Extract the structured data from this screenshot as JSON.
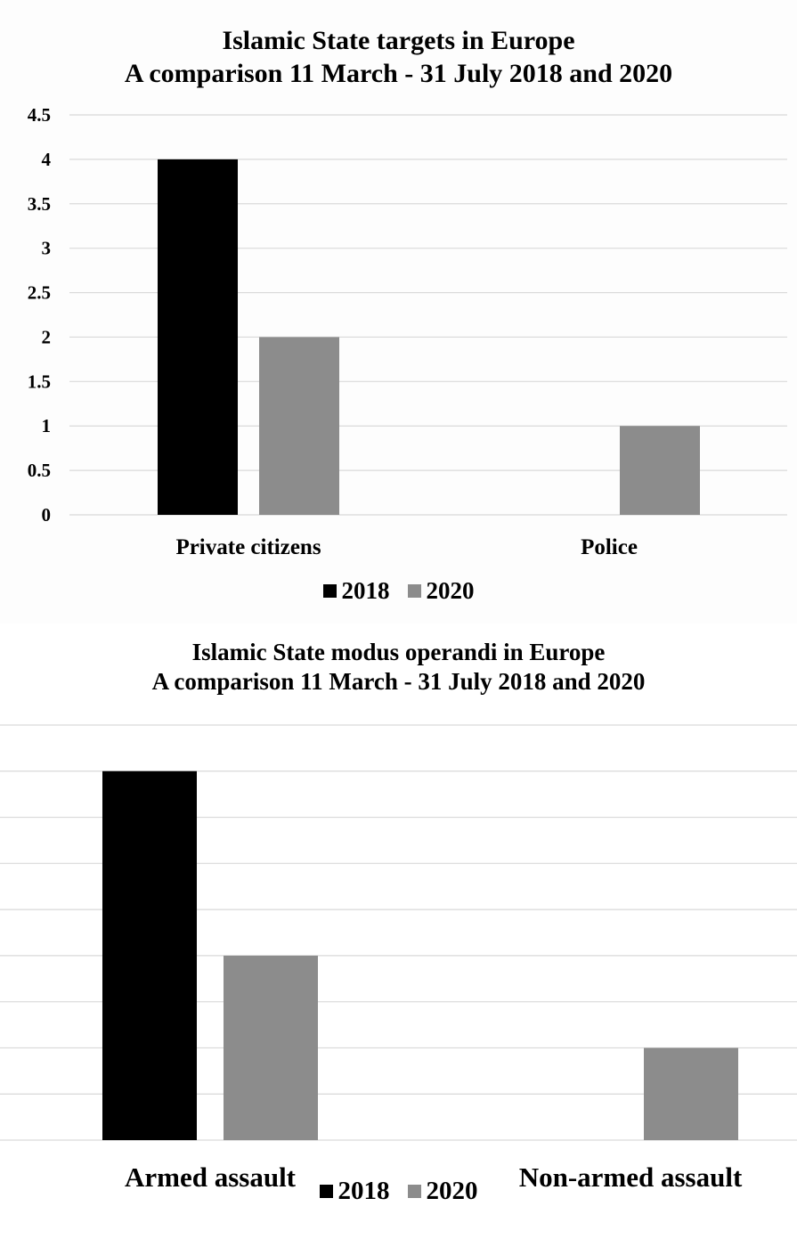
{
  "chart_data": [
    {
      "type": "bar",
      "title_lines": [
        "Islamic State targets in Europe",
        "A comparison 11 March - 31 July 2018 and 2020"
      ],
      "categories": [
        "Private citizens",
        "Police"
      ],
      "series": [
        {
          "name": "2018",
          "color": "#000000",
          "values": [
            4,
            0
          ]
        },
        {
          "name": "2020",
          "color": "#8c8c8c",
          "values": [
            2,
            1
          ]
        }
      ],
      "ylim": [
        0,
        4.5
      ],
      "yticks": [
        "0",
        "0.5",
        "1",
        "1.5",
        "2",
        "2.5",
        "3",
        "3.5",
        "4",
        "4.5"
      ],
      "ytick_labels_visible": true,
      "grid": true,
      "legend": "bottom"
    },
    {
      "type": "bar",
      "title_lines": [
        "Islamic State modus operandi in Europe",
        "A comparison 11 March - 31 July 2018 and 2020"
      ],
      "categories": [
        "Armed assault",
        "Non-armed assault"
      ],
      "series": [
        {
          "name": "2018",
          "color": "#000000",
          "values": [
            4,
            0
          ]
        },
        {
          "name": "2020",
          "color": "#8c8c8c",
          "values": [
            2,
            1
          ]
        }
      ],
      "ylim": [
        0,
        4.5
      ],
      "ytick_labels_visible": false,
      "grid": true,
      "legend": "bottom"
    }
  ]
}
